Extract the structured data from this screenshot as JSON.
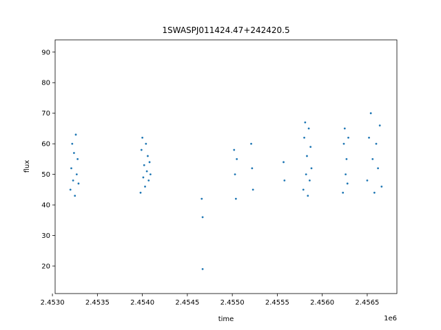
{
  "chart_data": {
    "type": "scatter",
    "title": "1SWASPJ011424.47+242420.5",
    "xlabel": "time",
    "ylabel": "flux",
    "x_offset_label": "1e6",
    "xlim": [
      2.45303,
      2.45683
    ],
    "ylim": [
      11.0,
      94.0
    ],
    "xticks": [
      2.453,
      2.4535,
      2.454,
      2.4545,
      2.455,
      2.4555,
      2.456,
      2.4565
    ],
    "xtick_labels": [
      "2.4530",
      "2.4535",
      "2.4540",
      "2.4545",
      "2.4550",
      "2.4555",
      "2.4560",
      "2.4565"
    ],
    "yticks": [
      20,
      30,
      40,
      50,
      60,
      70,
      80,
      90
    ],
    "ytick_labels": [
      "20",
      "30",
      "40",
      "50",
      "60",
      "70",
      "80",
      "90"
    ],
    "grid": false,
    "point_color": "#1f77b4",
    "series": [
      {
        "x": [
          2.4532,
          2.45321,
          2.45322,
          2.45323,
          2.45324,
          2.45325,
          2.45326,
          2.45327,
          2.45328,
          2.45329,
          2.45398,
          2.45399,
          2.454,
          2.45401,
          2.45402,
          2.45403,
          2.45404,
          2.45405,
          2.45406,
          2.45407,
          2.45408,
          2.45409,
          2.45466,
          2.45467,
          2.45467,
          2.45502,
          2.45503,
          2.45504,
          2.45505,
          2.45521,
          2.45522,
          2.45523,
          2.45557,
          2.45558,
          2.45579,
          2.4558,
          2.45581,
          2.45582,
          2.45583,
          2.45584,
          2.45585,
          2.45586,
          2.45587,
          2.45588,
          2.45623,
          2.45624,
          2.45625,
          2.45626,
          2.45627,
          2.45628,
          2.45629,
          2.4565,
          2.45652,
          2.45654,
          2.45656,
          2.45658,
          2.4566,
          2.45662,
          2.45664,
          2.45666
        ],
        "y": [
          45,
          52,
          60,
          48,
          57,
          43,
          63,
          50,
          55,
          47,
          44,
          58,
          62,
          49,
          53,
          46,
          60,
          51,
          56,
          48,
          54,
          50,
          42,
          36,
          19,
          58,
          50,
          42,
          55,
          60,
          52,
          45,
          54,
          48,
          45,
          62,
          67,
          50,
          56,
          43,
          65,
          48,
          59,
          52,
          44,
          60,
          65,
          50,
          55,
          47,
          62,
          48,
          62,
          70,
          55,
          44,
          60,
          52,
          66,
          46
        ]
      }
    ]
  }
}
